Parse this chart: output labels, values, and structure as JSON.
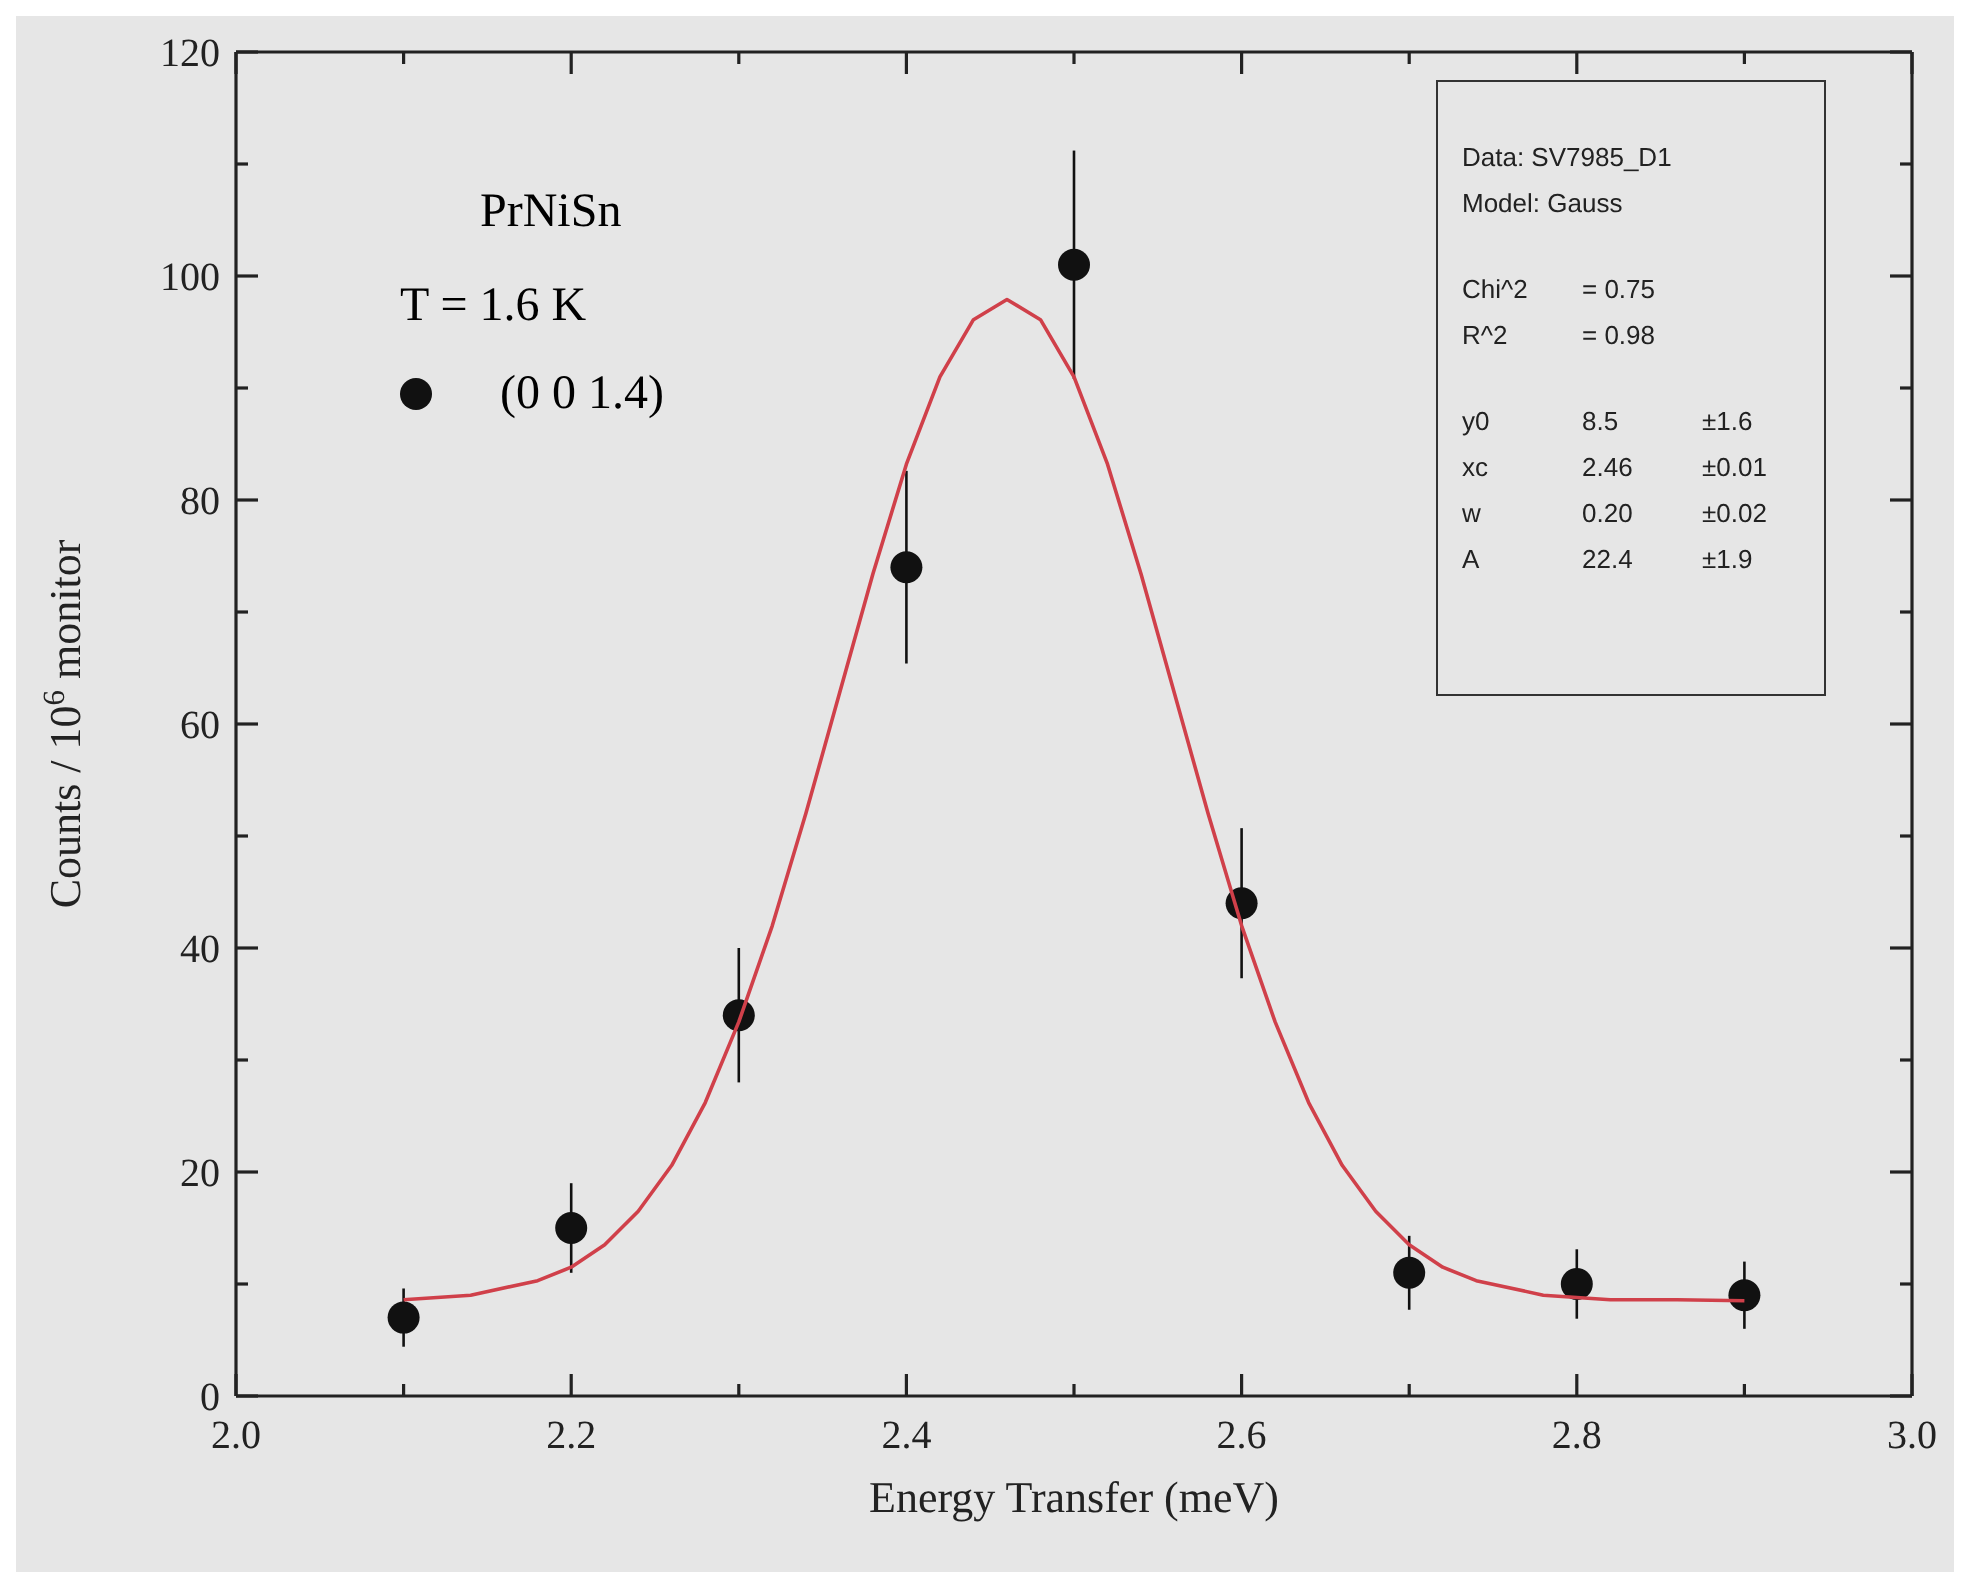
{
  "chart_data": {
    "type": "scatter",
    "xlabel": "Energy Transfer (meV)",
    "ylabel": "Counts / 10$^{6}$ monitor",
    "xlim": [
      2.0,
      3.0
    ],
    "xticks": [
      {
        "value": 2.0,
        "label": "2.0"
      },
      {
        "value": 2.1,
        "label": null
      },
      2.2,
      {
        "value": 2.3,
        "label": null
      },
      2.4,
      {
        "value": 2.5,
        "label": null
      },
      2.6,
      {
        "value": 2.7,
        "label": null
      },
      2.8,
      {
        "value": 2.9,
        "label": null
      },
      {
        "value": 3.0,
        "label": "3.0"
      }
    ],
    "ylim": [
      0,
      120
    ],
    "yticks": [
      0,
      {
        "value": 10,
        "label": null
      },
      20,
      {
        "value": 30,
        "label": null
      },
      40,
      {
        "value": 50,
        "label": null
      },
      60,
      {
        "value": 70,
        "label": null
      },
      80,
      {
        "value": 90,
        "label": null
      },
      100,
      {
        "value": 110,
        "label": null
      },
      120
    ],
    "legend": "top left",
    "marker": "circle",
    "annotations": [
      "PrNiSn",
      "T = 1.6 K",
      "Data: SV7985_D1",
      "Model: Gauss",
      "Chi^2\t= 0.75",
      "R^2\t= 0.98",
      "y0\t8.5\t±1.6",
      "xc\t2.46\t±0.01",
      "w\t0.20\t±0.02",
      "A\t22.4\t±1.9"
    ],
    "series": [
      {
        "name": "(0 0 1.4)",
        "color": "#111111",
        "x": [
          2.1,
          2.2,
          2.3,
          2.4,
          2.5,
          2.6,
          2.7,
          2.8,
          2.9
        ],
        "values": [
          7,
          15,
          34,
          74,
          101,
          44,
          11,
          10,
          9
        ],
        "errors": [
          2.6,
          4,
          6,
          8.6,
          10.2,
          6.7,
          3.3,
          3.1,
          3
        ]
      },
      {
        "type": "line",
        "marker": "none",
        "color": "#d0404a",
        "x": [
          2.1,
          2.14,
          2.18,
          2.2,
          2.22,
          2.24,
          2.26,
          2.28,
          2.3,
          2.32,
          2.34,
          2.36,
          2.38,
          2.4,
          2.42,
          2.44,
          2.46,
          2.48,
          2.5,
          2.52,
          2.54,
          2.56,
          2.58,
          2.6,
          2.62,
          2.64,
          2.66,
          2.68,
          2.7,
          2.72,
          2.74,
          2.78,
          2.82,
          2.86,
          2.9
        ],
        "values": [
          8.6,
          9.0,
          10.3,
          11.5,
          13.5,
          16.5,
          20.6,
          26.2,
          33.4,
          42.0,
          52.0,
          62.7,
          73.4,
          83.2,
          91.0,
          96.1,
          97.9,
          96.1,
          91.0,
          83.2,
          73.4,
          62.7,
          52.0,
          42.0,
          33.4,
          26.2,
          20.6,
          16.5,
          13.5,
          11.5,
          10.3,
          9.0,
          8.6,
          8.6,
          8.5
        ]
      }
    ]
  }
}
